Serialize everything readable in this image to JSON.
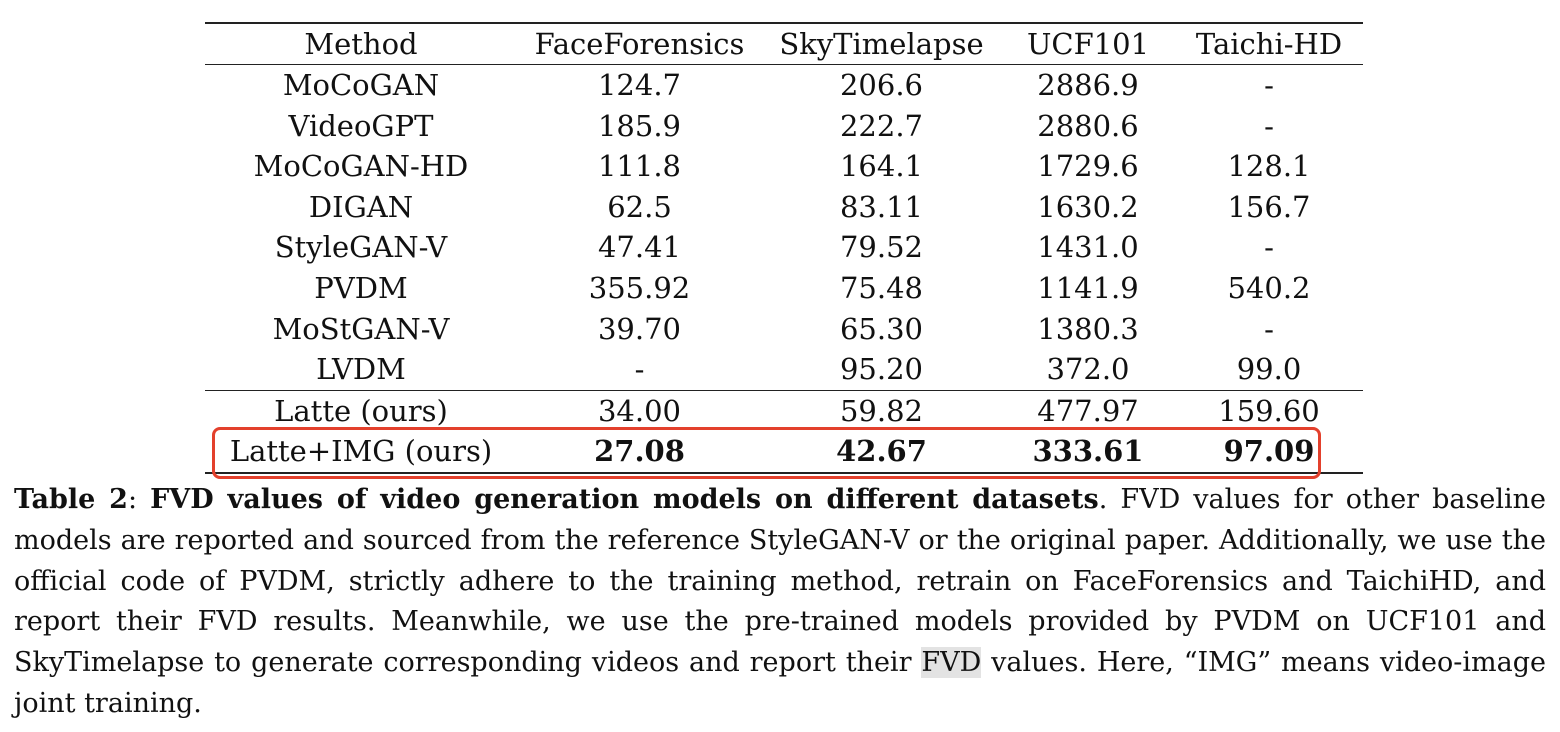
{
  "table": {
    "headers": [
      "Method",
      "FaceForensics",
      "SkyTimelapse",
      "UCF101",
      "Taichi-HD"
    ],
    "baseline_rows": [
      [
        "MoCoGAN",
        "124.7",
        "206.6",
        "2886.9",
        "-"
      ],
      [
        "VideoGPT",
        "185.9",
        "222.7",
        "2880.6",
        "-"
      ],
      [
        "MoCoGAN-HD",
        "111.8",
        "164.1",
        "1729.6",
        "128.1"
      ],
      [
        "DIGAN",
        "62.5",
        "83.11",
        "1630.2",
        "156.7"
      ],
      [
        "StyleGAN-V",
        "47.41",
        "79.52",
        "1431.0",
        "-"
      ],
      [
        "PVDM",
        "355.92",
        "75.48",
        "1141.9",
        "540.2"
      ],
      [
        "MoStGAN-V",
        "39.70",
        "65.30",
        "1380.3",
        "-"
      ],
      [
        "LVDM",
        "-",
        "95.20",
        "372.0",
        "99.0"
      ]
    ],
    "ours_rows": [
      [
        "Latte (ours)",
        "34.00",
        "59.82",
        "477.97",
        "159.60"
      ],
      [
        "Latte+IMG (ours)",
        "27.08",
        "42.67",
        "333.61",
        "97.09"
      ]
    ]
  },
  "highlight_color": "#e3402c",
  "caption": {
    "label": "Table 2",
    "sep": ": ",
    "title": "FVD values of video generation models on different datasets",
    "pre_highlight": ". FVD values for other baseline models are reported and sourced from the reference StyleGAN-V or the original paper. Additionally, we use the official code of PVDM, strictly adhere to the training method, retrain on FaceForensics and TaichiHD, and report their FVD results. Meanwhile, we use the pre-trained models provided by PVDM on UCF101 and SkyTimelapse to generate corresponding videos and report their ",
    "highlighted": "FVD",
    "post_highlight": " values. Here, “IMG” means video-image joint training."
  }
}
